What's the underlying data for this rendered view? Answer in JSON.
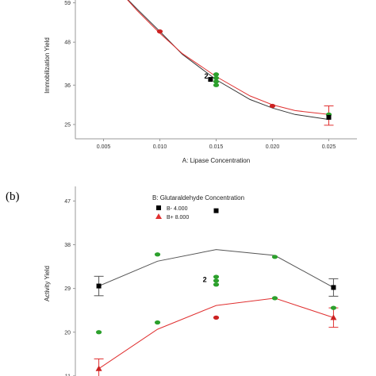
{
  "chart_data": [
    {
      "type": "scatter",
      "panel_label": "",
      "xlabel": "A: Lipase Concentration",
      "ylabel": "Immobilization Yield",
      "xlim": [
        0.0025,
        0.0275
      ],
      "ylim": [
        21,
        62
      ],
      "xticks": [
        "0.005",
        "0.010",
        "0.015",
        "0.020",
        "0.025"
      ],
      "yticks": [
        "25",
        "36",
        "48",
        "59"
      ],
      "annotations": [
        {
          "text": "2",
          "x": 0.0143,
          "y": 38.5
        }
      ],
      "series": [
        {
          "curve": [
            [
              0.0065,
              62
            ],
            [
              0.008,
              57.2
            ],
            [
              0.01,
              51.0
            ],
            [
              0.012,
              44.6
            ],
            [
              0.015,
              37.5
            ],
            [
              0.018,
              32.0
            ],
            [
              0.02,
              29.6
            ],
            [
              0.022,
              27.8
            ],
            [
              0.025,
              26.4
            ]
          ],
          "color": "#333333"
        },
        {
          "curve": [
            [
              0.0065,
              62
            ],
            [
              0.008,
              56.8
            ],
            [
              0.01,
              50.5
            ],
            [
              0.012,
              44.8
            ],
            [
              0.015,
              38.4
            ],
            [
              0.018,
              33.0
            ],
            [
              0.02,
              30.5
            ],
            [
              0.022,
              28.9
            ],
            [
              0.025,
              27.8
            ]
          ],
          "color": "#e03030"
        }
      ],
      "points": [
        {
          "x": 0.01,
          "y": 51.0,
          "color": "#cc2222",
          "marker": "dot"
        },
        {
          "x": 0.015,
          "y": 38.0,
          "color": "#2ca02c",
          "marker": "dot"
        },
        {
          "x": 0.015,
          "y": 37.0,
          "color": "#2ca02c",
          "marker": "dot"
        },
        {
          "x": 0.015,
          "y": 36.0,
          "color": "#2ca02c",
          "marker": "dot"
        },
        {
          "x": 0.015,
          "y": 39.0,
          "color": "#2ca02c",
          "marker": "dot"
        },
        {
          "x": 0.0145,
          "y": 37.6,
          "color": "#000000",
          "marker": "square"
        },
        {
          "x": 0.02,
          "y": 30.2,
          "color": "#cc2222",
          "marker": "dot"
        },
        {
          "x": 0.025,
          "y": 27.8,
          "color": "#2ca02c",
          "marker": "dot"
        },
        {
          "x": 0.025,
          "y": 27.0,
          "color": "#000000",
          "marker": "square"
        }
      ],
      "errorbars": [
        {
          "x": 0.025,
          "low": 24.8,
          "high": 30.2,
          "color": "#e03030"
        }
      ]
    },
    {
      "type": "scatter",
      "panel_label": "(b)",
      "ylabel": "Activity Yield",
      "ylim": [
        10,
        50
      ],
      "yticks": [
        "11",
        "20",
        "29",
        "38",
        "47"
      ],
      "xlim": [
        -1.2,
        1.2
      ],
      "legend_title": "B: Glutaraldehyde Concentration",
      "legend": [
        {
          "label": "B- 4.000",
          "marker": "square",
          "color": "#000000"
        },
        {
          "label": "B+ 8.000",
          "marker": "triangle",
          "color": "#e03030"
        }
      ],
      "annotations": [
        {
          "text": "2",
          "x": -0.08,
          "y": 30.8
        }
      ],
      "series": [
        {
          "name": "B- 4.000",
          "curve": [
            [
              -1,
              29.5
            ],
            [
              -0.5,
              34.6
            ],
            [
              0,
              37.0
            ],
            [
              0.5,
              35.8
            ],
            [
              1,
              29.2
            ]
          ],
          "color": "#555555"
        },
        {
          "name": "B+ 8.000",
          "curve": [
            [
              -1,
              12.5
            ],
            [
              -0.5,
              20.6
            ],
            [
              0,
              25.5
            ],
            [
              0.5,
              27.0
            ],
            [
              1,
              23.0
            ]
          ],
          "color": "#e03030"
        }
      ],
      "points": [
        {
          "x": -1,
          "y": 29.5,
          "color": "#000000",
          "marker": "square"
        },
        {
          "x": 1,
          "y": 29.2,
          "color": "#000000",
          "marker": "square"
        },
        {
          "x": 0,
          "y": 45.0,
          "color": "#000000",
          "marker": "square"
        },
        {
          "x": -1,
          "y": 12.5,
          "color": "#cc2222",
          "marker": "triangle"
        },
        {
          "x": 1,
          "y": 23.0,
          "color": "#cc2222",
          "marker": "triangle"
        },
        {
          "x": 0,
          "y": 23.0,
          "color": "#cc2222",
          "marker": "dot"
        },
        {
          "x": -1,
          "y": 20.0,
          "color": "#2ca02c",
          "marker": "dot"
        },
        {
          "x": -0.5,
          "y": 36.0,
          "color": "#2ca02c",
          "marker": "dot"
        },
        {
          "x": -0.5,
          "y": 22.0,
          "color": "#2ca02c",
          "marker": "dot"
        },
        {
          "x": 0,
          "y": 29.8,
          "color": "#2ca02c",
          "marker": "dot"
        },
        {
          "x": 0,
          "y": 30.6,
          "color": "#2ca02c",
          "marker": "dot"
        },
        {
          "x": 0,
          "y": 31.4,
          "color": "#2ca02c",
          "marker": "dot"
        },
        {
          "x": 0.5,
          "y": 35.5,
          "color": "#2ca02c",
          "marker": "dot"
        },
        {
          "x": 0.5,
          "y": 27.0,
          "color": "#2ca02c",
          "marker": "dot"
        },
        {
          "x": 1,
          "y": 25.0,
          "color": "#2ca02c",
          "marker": "dot"
        }
      ],
      "errorbars": [
        {
          "x": -1,
          "low": 27.5,
          "high": 31.5,
          "color": "#555555"
        },
        {
          "x": 1,
          "low": 27.4,
          "high": 31.0,
          "color": "#555555"
        },
        {
          "x": -1,
          "low": 10.5,
          "high": 14.5,
          "color": "#e03030"
        },
        {
          "x": 1,
          "low": 21.0,
          "high": 25.0,
          "color": "#e03030"
        }
      ]
    }
  ]
}
